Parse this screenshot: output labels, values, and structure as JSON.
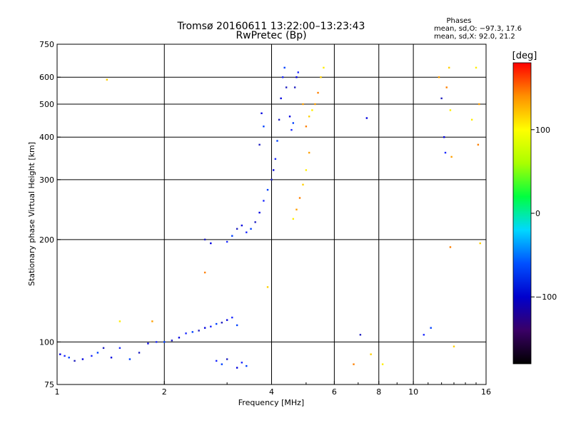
{
  "chart_data": {
    "type": "scatter",
    "title": "Tromsø 20160611 13:22:00–13:23:43",
    "subtitle": "RwPretec (Bp)",
    "xlabel": "Frequency [MHz]",
    "ylabel": "Stationary phase Virtual Height [km]",
    "x_scale": "log",
    "y_scale": "log",
    "xlim": [
      1,
      16
    ],
    "ylim": [
      75,
      750
    ],
    "x_ticks": [
      1,
      2,
      4,
      6,
      8,
      10,
      16
    ],
    "x_tick_labels": [
      "1",
      "2",
      "4",
      "6",
      "8",
      "10",
      "16"
    ],
    "y_ticks": [
      75,
      100,
      200,
      300,
      400,
      500,
      600,
      750
    ],
    "y_tick_labels": [
      "75",
      "100",
      "200",
      "300",
      "400",
      "500",
      "600",
      "750"
    ],
    "grid": "major lines at labeled ticks",
    "phase_box": {
      "heading": "Phases",
      "line1": "mean, sd,O: −97.3, 17.6",
      "line2": "mean, sd,X:  92.0, 21.2"
    },
    "colorbar": {
      "label": "[deg]",
      "range": [
        -180,
        180
      ],
      "ticks": [
        100,
        0,
        -100
      ],
      "tick_labels": [
        "100",
        "0",
        "−100"
      ],
      "colors": [
        "#000000",
        "#3a0066",
        "#0000cc",
        "#0050ff",
        "#00d8ff",
        "#00ff40",
        "#aaff00",
        "#ffff00",
        "#ff9000",
        "#ff0000"
      ]
    },
    "series": [
      {
        "name": "O",
        "points": [
          [
            1.02,
            92
          ],
          [
            1.05,
            91
          ],
          [
            1.08,
            90
          ],
          [
            1.12,
            88
          ],
          [
            1.18,
            89
          ],
          [
            1.25,
            91
          ],
          [
            1.3,
            93
          ],
          [
            1.35,
            96
          ],
          [
            1.42,
            90
          ],
          [
            1.5,
            96
          ],
          [
            1.6,
            89
          ],
          [
            1.7,
            93
          ],
          [
            1.8,
            99
          ],
          [
            1.9,
            100
          ],
          [
            2.0,
            100
          ],
          [
            2.1,
            101
          ],
          [
            2.2,
            103
          ],
          [
            2.3,
            106
          ],
          [
            2.4,
            107
          ],
          [
            2.5,
            108
          ],
          [
            2.6,
            110
          ],
          [
            2.7,
            111
          ],
          [
            2.8,
            113
          ],
          [
            2.9,
            114
          ],
          [
            3.0,
            116
          ],
          [
            3.1,
            118
          ],
          [
            3.2,
            112
          ],
          [
            2.6,
            200
          ],
          [
            2.7,
            195
          ],
          [
            3.0,
            197
          ],
          [
            3.1,
            205
          ],
          [
            3.2,
            215
          ],
          [
            3.3,
            220
          ],
          [
            3.4,
            210
          ],
          [
            3.5,
            215
          ],
          [
            3.6,
            225
          ],
          [
            3.7,
            240
          ],
          [
            3.8,
            260
          ],
          [
            3.9,
            280
          ],
          [
            4.0,
            300
          ],
          [
            4.05,
            320
          ],
          [
            4.1,
            345
          ],
          [
            4.15,
            390
          ],
          [
            4.2,
            450
          ],
          [
            4.25,
            520
          ],
          [
            4.3,
            600
          ],
          [
            4.35,
            640
          ],
          [
            4.4,
            560
          ],
          [
            4.5,
            460
          ],
          [
            4.55,
            420
          ],
          [
            4.6,
            440
          ],
          [
            4.65,
            560
          ],
          [
            4.7,
            600
          ],
          [
            4.75,
            620
          ],
          [
            3.8,
            430
          ],
          [
            3.7,
            380
          ],
          [
            3.75,
            470
          ],
          [
            2.8,
            88
          ],
          [
            2.9,
            86
          ],
          [
            3.0,
            89
          ],
          [
            3.2,
            84
          ],
          [
            3.3,
            87
          ],
          [
            3.4,
            85
          ],
          [
            7.1,
            105
          ],
          [
            7.4,
            455
          ],
          [
            10.7,
            105
          ],
          [
            11.2,
            110
          ],
          [
            12.0,
            520
          ],
          [
            12.2,
            400
          ],
          [
            12.3,
            360
          ]
        ]
      },
      {
        "name": "X",
        "points": [
          [
            1.38,
            590
          ],
          [
            1.5,
            115
          ],
          [
            1.85,
            115
          ],
          [
            2.6,
            160
          ],
          [
            3.9,
            145
          ],
          [
            4.6,
            230
          ],
          [
            4.7,
            245
          ],
          [
            4.8,
            265
          ],
          [
            4.9,
            290
          ],
          [
            5.0,
            320
          ],
          [
            5.1,
            360
          ],
          [
            5.0,
            430
          ],
          [
            5.1,
            460
          ],
          [
            5.2,
            480
          ],
          [
            5.3,
            500
          ],
          [
            5.4,
            540
          ],
          [
            5.5,
            600
          ],
          [
            5.6,
            640
          ],
          [
            4.9,
            500
          ],
          [
            6.8,
            86
          ],
          [
            7.6,
            92
          ],
          [
            8.2,
            86
          ],
          [
            11.8,
            600
          ],
          [
            12.4,
            560
          ],
          [
            12.6,
            640
          ],
          [
            12.7,
            480
          ],
          [
            12.8,
            350
          ],
          [
            12.7,
            190
          ],
          [
            13.0,
            97
          ],
          [
            15.0,
            640
          ],
          [
            15.3,
            500
          ],
          [
            15.2,
            380
          ],
          [
            15.4,
            195
          ],
          [
            14.6,
            450
          ]
        ]
      }
    ]
  }
}
